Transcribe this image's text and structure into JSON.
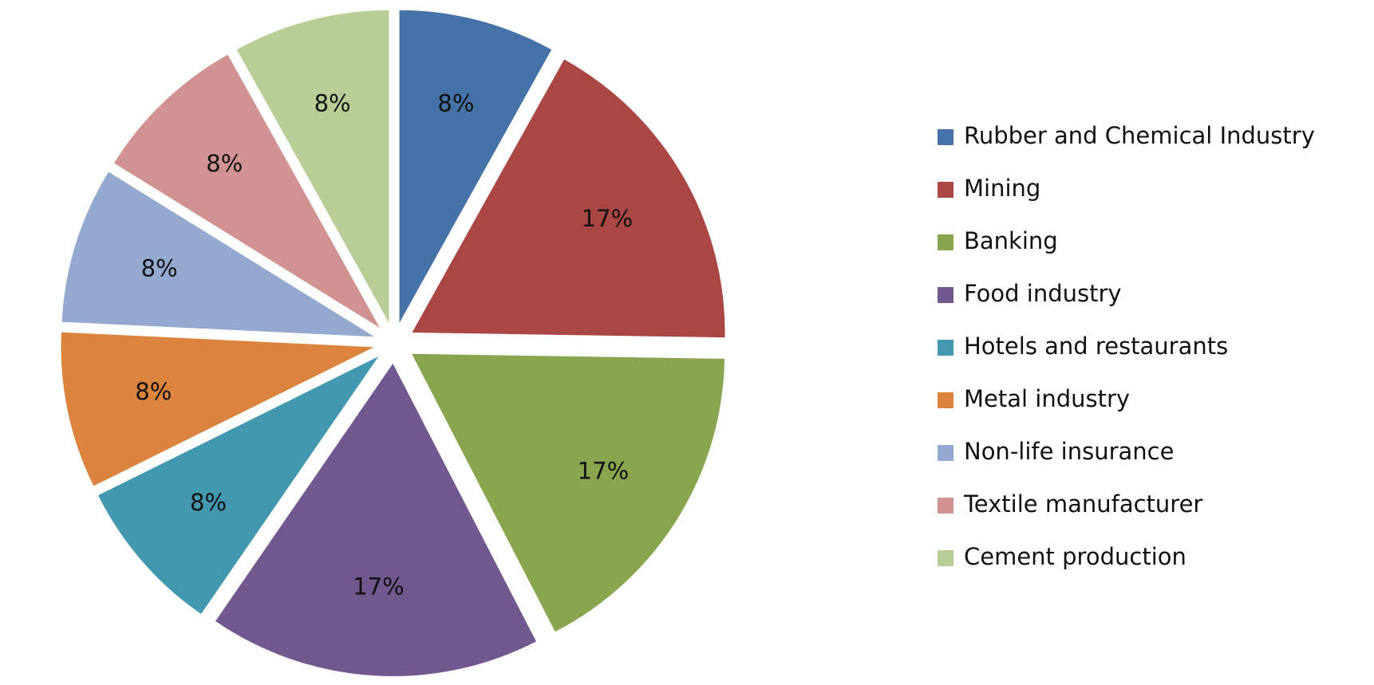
{
  "chart_data": {
    "type": "pie",
    "categories": [
      "Rubber and Chemical Industry",
      "Mining",
      "Banking",
      "Food industry",
      "Hotels and restaurants",
      "Metal industry",
      "Non-life insurance",
      "Textile manufacturer",
      "Cement production"
    ],
    "values": [
      8,
      17,
      17,
      17,
      8,
      8,
      8,
      8,
      8
    ],
    "value_labels": [
      "8%",
      "17%",
      "17%",
      "17%",
      "8%",
      "8%",
      "8%",
      "8%",
      "8%"
    ],
    "colors": [
      "#4572a7",
      "#aa4643",
      "#89a54e",
      "#71588f",
      "#4198af",
      "#db843d",
      "#93a9cf",
      "#d19392",
      "#b9cd96"
    ],
    "legend": "right"
  }
}
